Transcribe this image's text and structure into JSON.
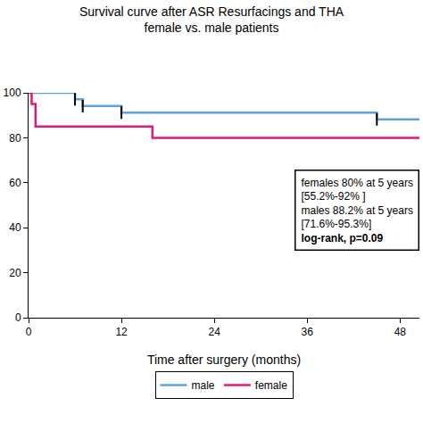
{
  "chart_data": {
    "type": "line",
    "title": [
      "Survival curve after ASR Resurfacings and THA",
      "female vs. male patients"
    ],
    "x_label": "Time after surgery (months)",
    "xlim": [
      0,
      50.5
    ],
    "xticks": [
      0,
      12,
      24,
      36,
      48
    ],
    "ylim": [
      0,
      100
    ],
    "yticks": [
      0,
      20,
      40,
      60,
      80,
      100
    ],
    "grid": false,
    "legend": "bottom",
    "line_style": "step",
    "series": [
      {
        "name": "male",
        "color": "#5ba3e0",
        "x": [
          0,
          6,
          7,
          12,
          45,
          50.5
        ],
        "values": [
          100,
          97.1,
          94.1,
          91.2,
          88.2,
          88.2
        ],
        "censored_x": [
          6,
          7,
          12,
          45
        ],
        "censored_values": [
          97.1,
          94.1,
          91.2,
          88.2
        ]
      },
      {
        "name": "female",
        "color": "#e6177a",
        "x": [
          0,
          0.4,
          0.9,
          16,
          50.5
        ],
        "values": [
          100,
          95,
          85,
          80,
          80
        ],
        "censored_x": [],
        "censored_values": []
      }
    ],
    "annotation": [
      "females 80% at 5 years",
      "[55.2%-92% ]",
      "males 88.2% at 5 years",
      "[71.6%-95.3%]",
      "log-rank, p=0.09"
    ]
  }
}
